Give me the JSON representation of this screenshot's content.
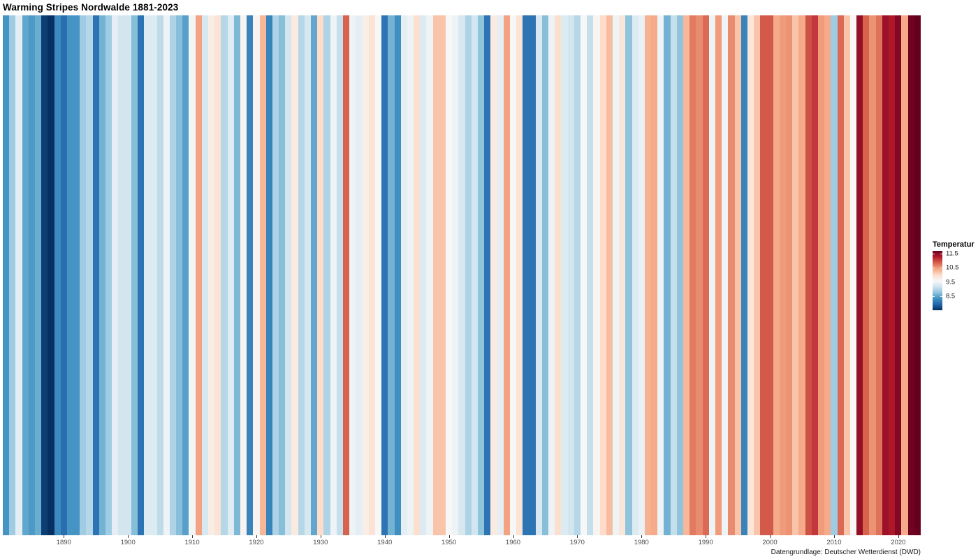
{
  "header": {
    "title": "Warming Stripes Nordwalde 1881-2023"
  },
  "caption": {
    "text": "Datengrundlage: Deutscher Wetterdienst (DWD)"
  },
  "legend": {
    "title": "Temperatur",
    "tick_values": [
      11.5,
      10.5,
      9.5,
      8.5
    ],
    "position": "right"
  },
  "x_axis": {
    "tick_years": [
      1890,
      1900,
      1910,
      1920,
      1930,
      1940,
      1950,
      1960,
      1970,
      1980,
      1990,
      2000,
      2010,
      2020
    ]
  },
  "colors": {
    "background": "#ffffff",
    "tick_mark": "#333333",
    "tick_label": "#4d4d4d",
    "title": "#000000",
    "caption": "#171717",
    "colormap_anchors_cold_to_warm": [
      "#053061",
      "#2166ac",
      "#4393c3",
      "#92c5de",
      "#d1e5f0",
      "#f7f7f7",
      "#fddbc7",
      "#f4a582",
      "#d6604d",
      "#b2182b",
      "#67001f"
    ]
  },
  "chart_data": {
    "type": "heatmap",
    "subtype": "warming-stripes",
    "title": "Warming Stripes Nordwalde 1881-2023",
    "xlabel": "",
    "ylabel": "Temperatur",
    "legend_position": "right",
    "grid": false,
    "colormap": "RdBu reversed (blue = cold, red = warm)",
    "color_domain": [
      7.5,
      11.7
    ],
    "year_start": 1881,
    "year_end": 2023,
    "values": [
      8.35,
      8.85,
      9.4,
      8.5,
      8.4,
      8.55,
      7.6,
      7.5,
      8.25,
      8.0,
      8.35,
      8.35,
      8.85,
      9.0,
      8.05,
      8.6,
      8.85,
      9.4,
      9.2,
      9.2,
      8.7,
      8.05,
      9.3,
      9.3,
      9.05,
      9.5,
      8.95,
      8.7,
      8.45,
      9.55,
      10.45,
      9.25,
      9.75,
      9.9,
      9.0,
      9.35,
      8.65,
      9.65,
      8.2,
      9.65,
      10.3,
      8.2,
      8.95,
      8.7,
      9.2,
      9.8,
      9.0,
      9.25,
      8.5,
      10.0,
      8.95,
      9.5,
      9.1,
      10.85,
      9.5,
      9.4,
      9.75,
      9.9,
      9.6,
      8.05,
      8.6,
      8.3,
      9.4,
      9.5,
      9.95,
      9.3,
      9.5,
      10.2,
      10.2,
      9.6,
      9.5,
      9.25,
      8.95,
      9.2,
      8.75,
      8.05,
      9.8,
      9.4,
      10.45,
      9.6,
      9.9,
      8.05,
      8.05,
      9.25,
      8.7,
      9.5,
      9.95,
      9.3,
      9.2,
      9.0,
      9.6,
      9.1,
      9.65,
      10.0,
      10.25,
      9.5,
      9.85,
      8.75,
      9.3,
      9.45,
      10.35,
      10.4,
      9.5,
      8.6,
      9.1,
      8.75,
      10.3,
      10.7,
      10.6,
      10.8,
      9.5,
      10.5,
      9.5,
      10.6,
      10.2,
      8.2,
      9.85,
      10.2,
      10.9,
      10.9,
      10.4,
      10.5,
      10.55,
      10.2,
      10.4,
      10.95,
      11.1,
      10.5,
      10.4,
      8.85,
      10.8,
      10.2,
      9.6,
      11.45,
      10.85,
      10.55,
      10.75,
      11.4,
      11.3,
      11.55,
      10.4,
      11.65,
      11.7
    ]
  }
}
